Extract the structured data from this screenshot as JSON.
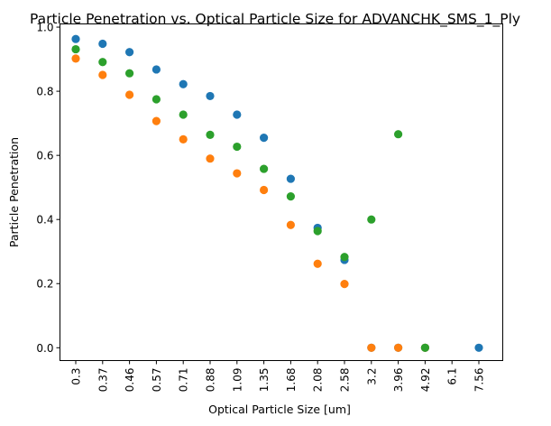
{
  "chart_data": {
    "type": "scatter",
    "title": "Particle Penetration vs. Optical Particle Size for ADVANCHK_SMS_1_Ply",
    "xlabel": "Optical Particle Size [um]",
    "ylabel": "Particle Penetration",
    "categories": [
      "0.3",
      "0.37",
      "0.46",
      "0.57",
      "0.71",
      "0.88",
      "1.09",
      "1.35",
      "1.68",
      "2.08",
      "2.58",
      "3.2",
      "3.96",
      "4.92",
      "6.1",
      "7.56"
    ],
    "yticks": [
      "0.0",
      "0.2",
      "0.4",
      "0.6",
      "0.8",
      "1.0"
    ],
    "ylim": [
      -0.04,
      1.01
    ],
    "grid": false,
    "series": [
      {
        "color": "#1f77b4",
        "values": [
          0.963,
          0.948,
          0.922,
          0.868,
          0.822,
          0.785,
          0.727,
          0.655,
          0.527,
          0.374,
          0.274,
          0.0,
          0.0,
          0.0,
          null,
          0.0
        ]
      },
      {
        "color": "#ff7f0e",
        "values": [
          0.902,
          0.851,
          0.789,
          0.707,
          0.65,
          0.59,
          0.544,
          0.492,
          0.383,
          0.262,
          0.199,
          0.0,
          0.0,
          0.0,
          null,
          null
        ]
      },
      {
        "color": "#2ca02c",
        "values": [
          0.931,
          0.891,
          0.856,
          0.775,
          0.727,
          0.664,
          0.627,
          0.558,
          0.472,
          0.364,
          0.283,
          0.4,
          0.666,
          0.0,
          null,
          null
        ]
      }
    ]
  }
}
